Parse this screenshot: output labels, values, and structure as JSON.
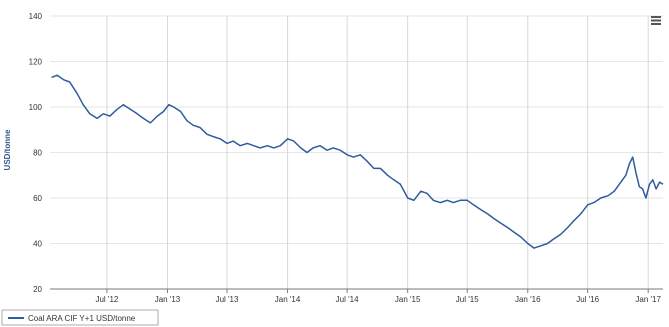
{
  "menu": {
    "icon": "hamburger-menu-icon"
  },
  "chart_data": {
    "type": "line",
    "title": "",
    "xlabel": "",
    "ylabel": "USD/tonne",
    "ylim": [
      20,
      140
    ],
    "yticks": [
      20,
      40,
      60,
      80,
      100,
      120,
      140
    ],
    "ytick_labels": [
      "20",
      "40",
      "60",
      "80",
      "100",
      "120",
      "140"
    ],
    "xlim": [
      "2012-01-10",
      "2017-02-15"
    ],
    "xticks": [
      {
        "date": "2012-07-01",
        "label": "Jul '12"
      },
      {
        "date": "2013-01-01",
        "label": "Jan '13"
      },
      {
        "date": "2013-07-01",
        "label": "Jul '13"
      },
      {
        "date": "2014-01-01",
        "label": "Jan '14"
      },
      {
        "date": "2014-07-01",
        "label": "Jul '14"
      },
      {
        "date": "2015-01-01",
        "label": "Jan '15"
      },
      {
        "date": "2015-07-01",
        "label": "Jul '15"
      },
      {
        "date": "2016-01-01",
        "label": "Jan '16"
      },
      {
        "date": "2016-07-01",
        "label": "Jul '16"
      },
      {
        "date": "2017-01-01",
        "label": "Jan '17"
      }
    ],
    "grid": true,
    "legend": "bottom-left",
    "series": [
      {
        "name": "Coal ARA CIF Y+1 USD/tonne",
        "color": "#2e5c9e",
        "points": [
          [
            "2012-01-15",
            113
          ],
          [
            "2012-02-01",
            114
          ],
          [
            "2012-02-20",
            112
          ],
          [
            "2012-03-10",
            111
          ],
          [
            "2012-04-01",
            106
          ],
          [
            "2012-04-20",
            101
          ],
          [
            "2012-05-10",
            97
          ],
          [
            "2012-06-01",
            95
          ],
          [
            "2012-06-20",
            97
          ],
          [
            "2012-07-10",
            96
          ],
          [
            "2012-08-01",
            99
          ],
          [
            "2012-08-20",
            101
          ],
          [
            "2012-09-10",
            99
          ],
          [
            "2012-10-01",
            97
          ],
          [
            "2012-10-20",
            95
          ],
          [
            "2012-11-10",
            93
          ],
          [
            "2012-12-01",
            96
          ],
          [
            "2012-12-20",
            98
          ],
          [
            "2013-01-05",
            101
          ],
          [
            "2013-01-20",
            100
          ],
          [
            "2013-02-10",
            98
          ],
          [
            "2013-03-01",
            94
          ],
          [
            "2013-03-20",
            92
          ],
          [
            "2013-04-10",
            91
          ],
          [
            "2013-05-01",
            88
          ],
          [
            "2013-05-20",
            87
          ],
          [
            "2013-06-10",
            86
          ],
          [
            "2013-07-01",
            84
          ],
          [
            "2013-07-20",
            85
          ],
          [
            "2013-08-10",
            83
          ],
          [
            "2013-09-01",
            84
          ],
          [
            "2013-09-20",
            83
          ],
          [
            "2013-10-10",
            82
          ],
          [
            "2013-11-01",
            83
          ],
          [
            "2013-11-20",
            82
          ],
          [
            "2013-12-10",
            83
          ],
          [
            "2014-01-01",
            86
          ],
          [
            "2014-01-20",
            85
          ],
          [
            "2014-02-10",
            82
          ],
          [
            "2014-03-01",
            80
          ],
          [
            "2014-03-20",
            82
          ],
          [
            "2014-04-10",
            83
          ],
          [
            "2014-05-01",
            81
          ],
          [
            "2014-05-20",
            82
          ],
          [
            "2014-06-10",
            81
          ],
          [
            "2014-07-01",
            79
          ],
          [
            "2014-07-20",
            78
          ],
          [
            "2014-08-10",
            79
          ],
          [
            "2014-09-01",
            76
          ],
          [
            "2014-09-20",
            73
          ],
          [
            "2014-10-10",
            73
          ],
          [
            "2014-11-01",
            70
          ],
          [
            "2014-11-20",
            68
          ],
          [
            "2014-12-10",
            66
          ],
          [
            "2015-01-01",
            60
          ],
          [
            "2015-01-20",
            59
          ],
          [
            "2015-02-10",
            63
          ],
          [
            "2015-03-01",
            62
          ],
          [
            "2015-03-20",
            59
          ],
          [
            "2015-04-10",
            58
          ],
          [
            "2015-05-01",
            59
          ],
          [
            "2015-05-20",
            58
          ],
          [
            "2015-06-10",
            59
          ],
          [
            "2015-07-01",
            59
          ],
          [
            "2015-07-20",
            57
          ],
          [
            "2015-08-10",
            55
          ],
          [
            "2015-09-01",
            53
          ],
          [
            "2015-09-20",
            51
          ],
          [
            "2015-10-10",
            49
          ],
          [
            "2015-11-01",
            47
          ],
          [
            "2015-11-20",
            45
          ],
          [
            "2015-12-10",
            43
          ],
          [
            "2016-01-01",
            40
          ],
          [
            "2016-01-20",
            38
          ],
          [
            "2016-02-10",
            39
          ],
          [
            "2016-03-01",
            40
          ],
          [
            "2016-03-20",
            42
          ],
          [
            "2016-04-10",
            44
          ],
          [
            "2016-05-01",
            47
          ],
          [
            "2016-05-20",
            50
          ],
          [
            "2016-06-10",
            53
          ],
          [
            "2016-07-01",
            57
          ],
          [
            "2016-07-20",
            58
          ],
          [
            "2016-08-10",
            60
          ],
          [
            "2016-09-01",
            61
          ],
          [
            "2016-09-20",
            63
          ],
          [
            "2016-10-10",
            67
          ],
          [
            "2016-10-25",
            70
          ],
          [
            "2016-11-05",
            75
          ],
          [
            "2016-11-15",
            78
          ],
          [
            "2016-11-25",
            71
          ],
          [
            "2016-12-05",
            65
          ],
          [
            "2016-12-15",
            64
          ],
          [
            "2016-12-25",
            60
          ],
          [
            "2017-01-05",
            66
          ],
          [
            "2017-01-15",
            68
          ],
          [
            "2017-01-25",
            64
          ],
          [
            "2017-02-05",
            67
          ],
          [
            "2017-02-15",
            66
          ]
        ]
      }
    ]
  }
}
